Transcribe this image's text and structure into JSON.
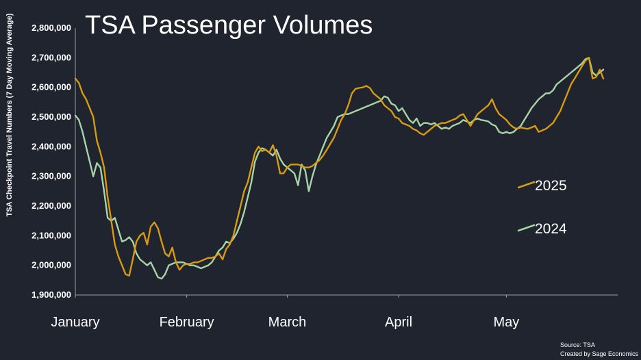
{
  "chart_data": {
    "type": "line",
    "title": "TSA Passenger Volumes",
    "ylabel": "TSA Checkpoint Travel Numbers (7 Day Moving Average)",
    "xlabel": "",
    "ylim": [
      1900000,
      2800000
    ],
    "yticks": [
      1900000,
      2000000,
      2100000,
      2200000,
      2300000,
      2400000,
      2500000,
      2600000,
      2700000,
      2800000
    ],
    "ytick_labels": [
      "1,900,000",
      "2,000,000",
      "2,100,000",
      "2,200,000",
      "2,300,000",
      "2,400,000",
      "2,500,000",
      "2,600,000",
      "2,700,000",
      "2,800,000"
    ],
    "xlim": [
      1,
      152
    ],
    "x_unit": "day of year",
    "xticks": [
      {
        "label": "January",
        "day": 1
      },
      {
        "label": "February",
        "day": 32
      },
      {
        "label": "March",
        "day": 60
      },
      {
        "label": "April",
        "day": 91
      },
      {
        "label": "May",
        "day": 121
      }
    ],
    "grid": false,
    "legend": "right",
    "source_lines": [
      "Source: TSA",
      "Created by Sage Economics"
    ],
    "series": [
      {
        "name": "2025",
        "color": "#d89b14",
        "points": [
          [
            1,
            2630000
          ],
          [
            2,
            2615000
          ],
          [
            3,
            2580000
          ],
          [
            4,
            2560000
          ],
          [
            5,
            2530000
          ],
          [
            6,
            2500000
          ],
          [
            7,
            2420000
          ],
          [
            8,
            2380000
          ],
          [
            9,
            2330000
          ],
          [
            10,
            2230000
          ],
          [
            11,
            2150000
          ],
          [
            12,
            2070000
          ],
          [
            13,
            2030000
          ],
          [
            14,
            2000000
          ],
          [
            15,
            1970000
          ],
          [
            16,
            1965000
          ],
          [
            17,
            2020000
          ],
          [
            18,
            2080000
          ],
          [
            19,
            2100000
          ],
          [
            20,
            2110000
          ],
          [
            21,
            2070000
          ],
          [
            22,
            2130000
          ],
          [
            23,
            2145000
          ],
          [
            24,
            2125000
          ],
          [
            25,
            2080000
          ],
          [
            26,
            2040000
          ],
          [
            27,
            2030000
          ],
          [
            28,
            2060000
          ],
          [
            29,
            2010000
          ],
          [
            30,
            1985000
          ],
          [
            31,
            2000000
          ],
          [
            32,
            2005000
          ],
          [
            33,
            2005000
          ],
          [
            34,
            2010000
          ],
          [
            35,
            2010000
          ],
          [
            36,
            2015000
          ],
          [
            37,
            2020000
          ],
          [
            38,
            2025000
          ],
          [
            39,
            2025000
          ],
          [
            40,
            2030000
          ],
          [
            41,
            2040000
          ],
          [
            42,
            2020000
          ],
          [
            43,
            2055000
          ],
          [
            44,
            2070000
          ],
          [
            45,
            2100000
          ],
          [
            46,
            2150000
          ],
          [
            47,
            2200000
          ],
          [
            48,
            2250000
          ],
          [
            49,
            2280000
          ],
          [
            50,
            2330000
          ],
          [
            51,
            2380000
          ],
          [
            52,
            2400000
          ],
          [
            53,
            2385000
          ],
          [
            54,
            2390000
          ],
          [
            55,
            2380000
          ],
          [
            56,
            2405000
          ],
          [
            57,
            2370000
          ],
          [
            58,
            2310000
          ],
          [
            59,
            2310000
          ],
          [
            60,
            2330000
          ],
          [
            61,
            2340000
          ],
          [
            62,
            2340000
          ],
          [
            63,
            2340000
          ],
          [
            64,
            2335000
          ],
          [
            65,
            2330000
          ],
          [
            66,
            2330000
          ],
          [
            67,
            2335000
          ],
          [
            68,
            2345000
          ],
          [
            69,
            2355000
          ],
          [
            70,
            2370000
          ],
          [
            71,
            2390000
          ],
          [
            72,
            2410000
          ],
          [
            73,
            2430000
          ],
          [
            74,
            2460000
          ],
          [
            75,
            2490000
          ],
          [
            76,
            2510000
          ],
          [
            77,
            2540000
          ],
          [
            78,
            2580000
          ],
          [
            79,
            2595000
          ],
          [
            80,
            2598000
          ],
          [
            81,
            2600000
          ],
          [
            82,
            2605000
          ],
          [
            83,
            2598000
          ],
          [
            84,
            2580000
          ],
          [
            85,
            2570000
          ],
          [
            86,
            2560000
          ],
          [
            87,
            2540000
          ],
          [
            88,
            2530000
          ],
          [
            89,
            2520000
          ],
          [
            90,
            2500000
          ],
          [
            91,
            2495000
          ],
          [
            92,
            2480000
          ],
          [
            93,
            2475000
          ],
          [
            94,
            2470000
          ],
          [
            95,
            2460000
          ],
          [
            96,
            2455000
          ],
          [
            97,
            2445000
          ],
          [
            98,
            2440000
          ],
          [
            99,
            2450000
          ],
          [
            100,
            2460000
          ],
          [
            101,
            2470000
          ],
          [
            102,
            2475000
          ],
          [
            103,
            2480000
          ],
          [
            104,
            2480000
          ],
          [
            105,
            2485000
          ],
          [
            106,
            2490000
          ],
          [
            107,
            2495000
          ],
          [
            108,
            2505000
          ],
          [
            109,
            2510000
          ],
          [
            110,
            2490000
          ],
          [
            111,
            2470000
          ],
          [
            112,
            2490000
          ],
          [
            113,
            2510000
          ],
          [
            114,
            2520000
          ],
          [
            115,
            2530000
          ],
          [
            116,
            2540000
          ],
          [
            117,
            2560000
          ],
          [
            118,
            2530000
          ],
          [
            119,
            2510000
          ],
          [
            120,
            2500000
          ],
          [
            121,
            2490000
          ],
          [
            122,
            2475000
          ],
          [
            123,
            2465000
          ],
          [
            124,
            2460000
          ],
          [
            125,
            2465000
          ],
          [
            126,
            2462000
          ],
          [
            127,
            2460000
          ],
          [
            128,
            2465000
          ],
          [
            129,
            2470000
          ],
          [
            130,
            2450000
          ],
          [
            131,
            2455000
          ],
          [
            132,
            2460000
          ],
          [
            133,
            2470000
          ],
          [
            134,
            2480000
          ],
          [
            135,
            2500000
          ],
          [
            136,
            2520000
          ],
          [
            137,
            2550000
          ],
          [
            138,
            2580000
          ],
          [
            139,
            2610000
          ],
          [
            140,
            2630000
          ],
          [
            141,
            2650000
          ],
          [
            142,
            2670000
          ],
          [
            143,
            2690000
          ],
          [
            144,
            2700000
          ],
          [
            145,
            2630000
          ],
          [
            146,
            2635000
          ],
          [
            147,
            2660000
          ],
          [
            148,
            2630000
          ]
        ]
      },
      {
        "name": "2024",
        "color": "#a9d4a6",
        "points": [
          [
            1,
            2505000
          ],
          [
            2,
            2490000
          ],
          [
            3,
            2450000
          ],
          [
            4,
            2400000
          ],
          [
            5,
            2350000
          ],
          [
            6,
            2300000
          ],
          [
            7,
            2345000
          ],
          [
            8,
            2330000
          ],
          [
            9,
            2250000
          ],
          [
            10,
            2160000
          ],
          [
            11,
            2150000
          ],
          [
            12,
            2160000
          ],
          [
            13,
            2120000
          ],
          [
            14,
            2080000
          ],
          [
            15,
            2085000
          ],
          [
            16,
            2095000
          ],
          [
            17,
            2080000
          ],
          [
            18,
            2040000
          ],
          [
            19,
            2020000
          ],
          [
            20,
            2010000
          ],
          [
            21,
            2000000
          ],
          [
            22,
            2010000
          ],
          [
            23,
            1985000
          ],
          [
            24,
            1960000
          ],
          [
            25,
            1955000
          ],
          [
            26,
            1970000
          ],
          [
            27,
            2000000
          ],
          [
            28,
            2005000
          ],
          [
            29,
            2010000
          ],
          [
            30,
            2010000
          ],
          [
            31,
            2010000
          ],
          [
            32,
            2005000
          ],
          [
            33,
            2000000
          ],
          [
            34,
            2000000
          ],
          [
            35,
            1995000
          ],
          [
            36,
            1990000
          ],
          [
            37,
            1995000
          ],
          [
            38,
            2000000
          ],
          [
            39,
            2010000
          ],
          [
            40,
            2030000
          ],
          [
            41,
            2050000
          ],
          [
            42,
            2060000
          ],
          [
            43,
            2080000
          ],
          [
            44,
            2075000
          ],
          [
            45,
            2090000
          ],
          [
            46,
            2110000
          ],
          [
            47,
            2140000
          ],
          [
            48,
            2180000
          ],
          [
            49,
            2230000
          ],
          [
            50,
            2280000
          ],
          [
            51,
            2350000
          ],
          [
            52,
            2380000
          ],
          [
            53,
            2395000
          ],
          [
            54,
            2390000
          ],
          [
            55,
            2380000
          ],
          [
            56,
            2370000
          ],
          [
            57,
            2390000
          ],
          [
            58,
            2360000
          ],
          [
            59,
            2340000
          ],
          [
            60,
            2330000
          ],
          [
            61,
            2320000
          ],
          [
            62,
            2310000
          ],
          [
            63,
            2270000
          ],
          [
            64,
            2340000
          ],
          [
            65,
            2320000
          ],
          [
            66,
            2250000
          ],
          [
            67,
            2300000
          ],
          [
            68,
            2340000
          ],
          [
            69,
            2370000
          ],
          [
            70,
            2400000
          ],
          [
            71,
            2430000
          ],
          [
            72,
            2450000
          ],
          [
            73,
            2470000
          ],
          [
            74,
            2500000
          ],
          [
            75,
            2505000
          ],
          [
            76,
            2510000
          ],
          [
            77,
            2510000
          ],
          [
            78,
            2515000
          ],
          [
            79,
            2520000
          ],
          [
            80,
            2525000
          ],
          [
            81,
            2530000
          ],
          [
            82,
            2535000
          ],
          [
            83,
            2540000
          ],
          [
            84,
            2545000
          ],
          [
            85,
            2550000
          ],
          [
            86,
            2555000
          ],
          [
            87,
            2570000
          ],
          [
            88,
            2565000
          ],
          [
            89,
            2545000
          ],
          [
            90,
            2540000
          ],
          [
            91,
            2520000
          ],
          [
            92,
            2530000
          ],
          [
            93,
            2510000
          ],
          [
            94,
            2490000
          ],
          [
            95,
            2480000
          ],
          [
            96,
            2495000
          ],
          [
            97,
            2470000
          ],
          [
            98,
            2480000
          ],
          [
            99,
            2480000
          ],
          [
            100,
            2475000
          ],
          [
            101,
            2480000
          ],
          [
            102,
            2470000
          ],
          [
            103,
            2460000
          ],
          [
            104,
            2465000
          ],
          [
            105,
            2460000
          ],
          [
            106,
            2470000
          ],
          [
            107,
            2475000
          ],
          [
            108,
            2480000
          ],
          [
            109,
            2490000
          ],
          [
            110,
            2485000
          ],
          [
            111,
            2480000
          ],
          [
            112,
            2490000
          ],
          [
            113,
            2495000
          ],
          [
            114,
            2490000
          ],
          [
            115,
            2488000
          ],
          [
            116,
            2485000
          ],
          [
            117,
            2475000
          ],
          [
            118,
            2470000
          ],
          [
            119,
            2450000
          ],
          [
            120,
            2445000
          ],
          [
            121,
            2450000
          ],
          [
            122,
            2445000
          ],
          [
            123,
            2450000
          ],
          [
            124,
            2460000
          ],
          [
            125,
            2470000
          ],
          [
            126,
            2490000
          ],
          [
            127,
            2510000
          ],
          [
            128,
            2530000
          ],
          [
            129,
            2545000
          ],
          [
            130,
            2560000
          ],
          [
            131,
            2570000
          ],
          [
            132,
            2580000
          ],
          [
            133,
            2580000
          ],
          [
            134,
            2590000
          ],
          [
            135,
            2610000
          ],
          [
            136,
            2620000
          ],
          [
            137,
            2630000
          ],
          [
            138,
            2640000
          ],
          [
            139,
            2650000
          ],
          [
            140,
            2660000
          ],
          [
            141,
            2670000
          ],
          [
            142,
            2680000
          ],
          [
            143,
            2695000
          ],
          [
            144,
            2700000
          ],
          [
            145,
            2650000
          ],
          [
            146,
            2640000
          ],
          [
            147,
            2650000
          ],
          [
            148,
            2660000
          ]
        ]
      }
    ]
  }
}
